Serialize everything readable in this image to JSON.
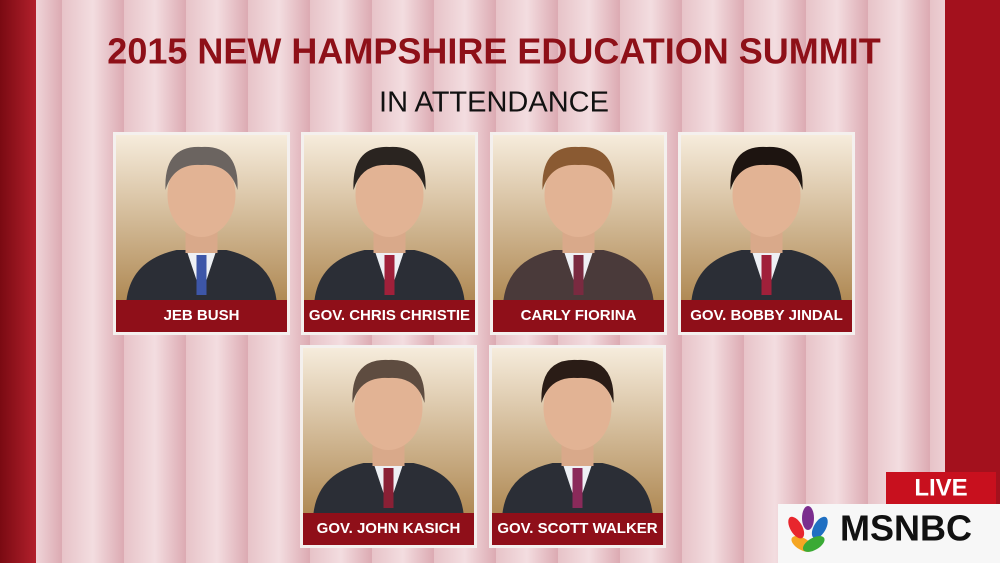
{
  "header": {
    "title": "2015 NEW HAMPSHIRE EDUCATION SUMMIT",
    "subtitle": "IN ATTENDANCE"
  },
  "attendees": [
    {
      "name": "JEB BUSH"
    },
    {
      "name": "GOV. CHRIS CHRISTIE"
    },
    {
      "name": "CARLY FIORINA"
    },
    {
      "name": "GOV. BOBBY JINDAL"
    },
    {
      "name": "GOV. JOHN KASICH"
    },
    {
      "name": "GOV. SCOTT WALKER"
    }
  ],
  "logo": {
    "live": "LIVE",
    "network": "MSNBC"
  }
}
